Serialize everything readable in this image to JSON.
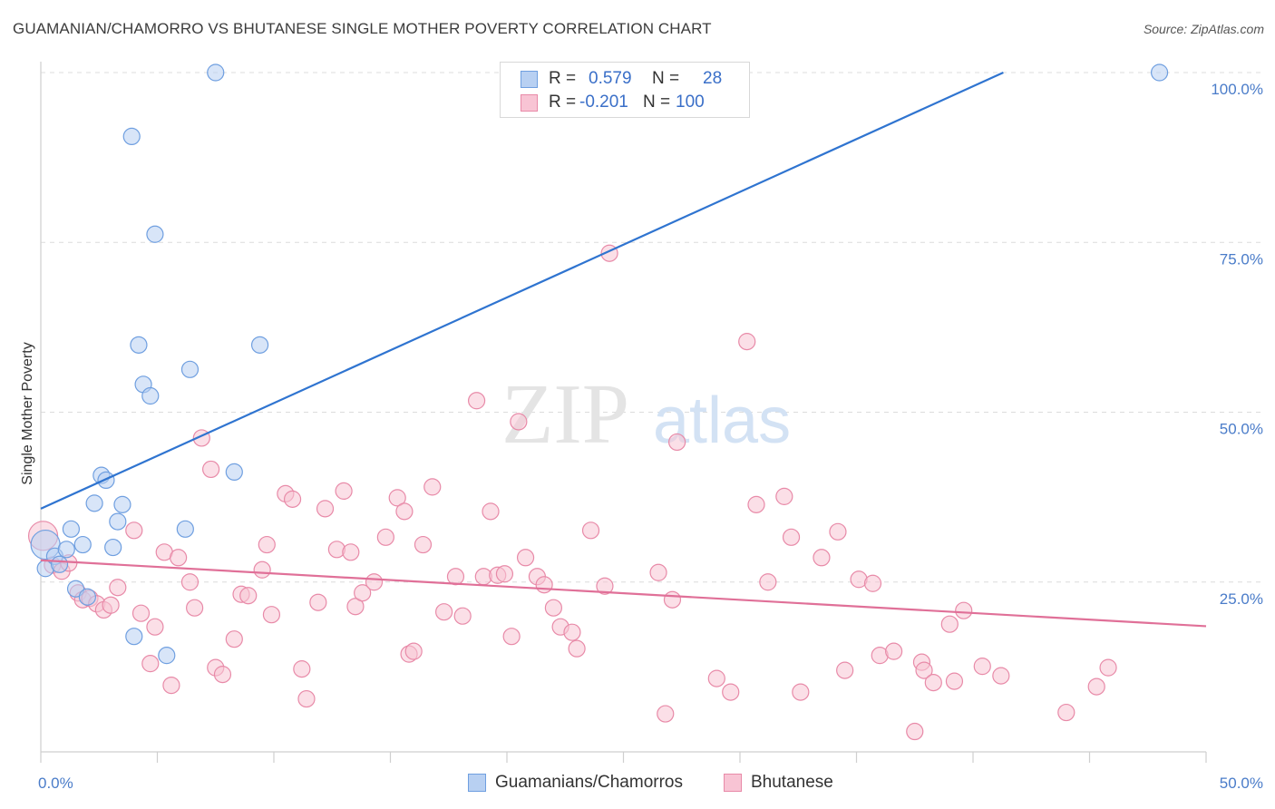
{
  "title": "GUAMANIAN/CHAMORRO VS BHUTANESE SINGLE MOTHER POVERTY CORRELATION CHART",
  "source": "Source: ZipAtlas.com",
  "watermark": {
    "zip": "ZIP",
    "atlas": "atlas"
  },
  "legend": {
    "series1": {
      "r_label": "R =",
      "r_value": "0.579",
      "n_label": "N =",
      "n_value": "28"
    },
    "series2": {
      "r_label": "R =",
      "r_value": "-0.201",
      "n_label": "N =",
      "n_value": "100"
    }
  },
  "colors": {
    "blue_fill": "#b8d0f2",
    "blue_stroke": "#6f9fe0",
    "blue_line": "#2f74d0",
    "pink_fill": "#f8c4d4",
    "pink_stroke": "#e88aa8",
    "pink_line": "#e07098",
    "grid": "#dcdcdc",
    "tick_text": "#4a7cc9"
  },
  "chart_data": {
    "type": "scatter",
    "xlabel": "",
    "ylabel": "Single Mother Poverty",
    "xlim": [
      0,
      50
    ],
    "ylim": [
      0,
      100
    ],
    "x_tick_labels": [
      "0.0%",
      "50.0%"
    ],
    "y_tick_labels": [
      "25.0%",
      "50.0%",
      "75.0%",
      "100.0%"
    ],
    "y_ticks": [
      25,
      50,
      75,
      100
    ],
    "grid": true,
    "legend_position": "top-center",
    "series": [
      {
        "name": "Guamanians/Chamorros",
        "color": "blue",
        "trend": {
          "x": [
            0,
            41.3
          ],
          "y": [
            35.8,
            100
          ]
        },
        "points": [
          [
            0.2,
            30.5
          ],
          [
            0.2,
            27.0
          ],
          [
            0.6,
            28.8
          ],
          [
            0.8,
            27.6
          ],
          [
            1.1,
            29.8
          ],
          [
            1.3,
            32.8
          ],
          [
            1.5,
            24.0
          ],
          [
            1.8,
            30.5
          ],
          [
            2.0,
            22.8
          ],
          [
            2.3,
            36.6
          ],
          [
            2.6,
            40.7
          ],
          [
            2.8,
            40.0
          ],
          [
            3.1,
            30.1
          ],
          [
            3.3,
            33.9
          ],
          [
            3.5,
            36.4
          ],
          [
            3.9,
            90.6
          ],
          [
            4.0,
            17.0
          ],
          [
            4.2,
            59.9
          ],
          [
            4.4,
            54.1
          ],
          [
            4.7,
            52.4
          ],
          [
            4.9,
            76.2
          ],
          [
            5.4,
            14.2
          ],
          [
            6.2,
            32.8
          ],
          [
            6.4,
            56.3
          ],
          [
            7.5,
            100.0
          ],
          [
            8.3,
            41.2
          ],
          [
            9.4,
            59.9
          ],
          [
            48.0,
            100.0
          ]
        ]
      },
      {
        "name": "Bhutanese",
        "color": "pink",
        "trend": {
          "x": [
            0,
            50
          ],
          "y": [
            28.2,
            18.5
          ]
        },
        "points": [
          [
            0.1,
            31.8
          ],
          [
            0.5,
            27.5
          ],
          [
            0.9,
            26.6
          ],
          [
            1.2,
            27.8
          ],
          [
            1.6,
            23.4
          ],
          [
            1.8,
            22.4
          ],
          [
            2.1,
            22.6
          ],
          [
            2.4,
            21.8
          ],
          [
            2.7,
            20.9
          ],
          [
            3.0,
            21.6
          ],
          [
            3.3,
            24.2
          ],
          [
            4.0,
            32.6
          ],
          [
            4.3,
            20.4
          ],
          [
            4.7,
            13.0
          ],
          [
            4.9,
            18.4
          ],
          [
            5.3,
            29.4
          ],
          [
            5.6,
            9.8
          ],
          [
            5.9,
            28.6
          ],
          [
            6.4,
            25.0
          ],
          [
            6.6,
            21.2
          ],
          [
            6.9,
            46.2
          ],
          [
            7.3,
            41.6
          ],
          [
            7.5,
            12.4
          ],
          [
            7.8,
            11.4
          ],
          [
            8.3,
            16.6
          ],
          [
            8.6,
            23.2
          ],
          [
            8.9,
            23.0
          ],
          [
            9.5,
            26.8
          ],
          [
            9.7,
            30.5
          ],
          [
            9.9,
            20.2
          ],
          [
            10.5,
            38.0
          ],
          [
            10.8,
            37.2
          ],
          [
            11.2,
            12.2
          ],
          [
            11.4,
            7.8
          ],
          [
            11.9,
            22.0
          ],
          [
            12.2,
            35.8
          ],
          [
            12.7,
            29.8
          ],
          [
            13.0,
            38.4
          ],
          [
            13.3,
            29.4
          ],
          [
            13.5,
            21.4
          ],
          [
            13.8,
            23.4
          ],
          [
            14.3,
            25.0
          ],
          [
            14.8,
            31.6
          ],
          [
            15.3,
            37.4
          ],
          [
            15.6,
            35.4
          ],
          [
            15.8,
            14.4
          ],
          [
            16.0,
            14.8
          ],
          [
            16.4,
            30.5
          ],
          [
            16.8,
            39.0
          ],
          [
            17.3,
            20.6
          ],
          [
            17.8,
            25.8
          ],
          [
            18.1,
            20.0
          ],
          [
            18.7,
            51.7
          ],
          [
            19.0,
            25.8
          ],
          [
            19.3,
            35.4
          ],
          [
            19.6,
            26.0
          ],
          [
            19.9,
            26.2
          ],
          [
            20.2,
            17.0
          ],
          [
            20.5,
            48.6
          ],
          [
            20.8,
            28.6
          ],
          [
            21.3,
            25.8
          ],
          [
            21.6,
            24.6
          ],
          [
            22.0,
            21.2
          ],
          [
            22.3,
            18.4
          ],
          [
            22.8,
            17.6
          ],
          [
            23.0,
            15.2
          ],
          [
            23.6,
            32.6
          ],
          [
            24.2,
            24.4
          ],
          [
            24.4,
            73.4
          ],
          [
            26.5,
            26.4
          ],
          [
            26.8,
            5.6
          ],
          [
            27.1,
            22.4
          ],
          [
            27.3,
            45.6
          ],
          [
            29.0,
            10.8
          ],
          [
            29.6,
            8.8
          ],
          [
            30.3,
            60.4
          ],
          [
            30.7,
            36.4
          ],
          [
            31.2,
            25.0
          ],
          [
            31.9,
            37.6
          ],
          [
            32.2,
            31.6
          ],
          [
            32.6,
            8.8
          ],
          [
            33.5,
            28.6
          ],
          [
            34.2,
            32.4
          ],
          [
            34.5,
            12.0
          ],
          [
            35.1,
            25.4
          ],
          [
            35.7,
            24.8
          ],
          [
            36.0,
            14.2
          ],
          [
            36.6,
            14.8
          ],
          [
            37.5,
            3.0
          ],
          [
            37.8,
            13.2
          ],
          [
            37.9,
            12.0
          ],
          [
            38.3,
            10.2
          ],
          [
            39.0,
            18.8
          ],
          [
            39.2,
            10.4
          ],
          [
            39.6,
            20.8
          ],
          [
            40.4,
            12.6
          ],
          [
            41.2,
            11.2
          ],
          [
            44.0,
            5.8
          ],
          [
            45.3,
            9.6
          ],
          [
            45.8,
            12.4
          ]
        ]
      }
    ]
  }
}
